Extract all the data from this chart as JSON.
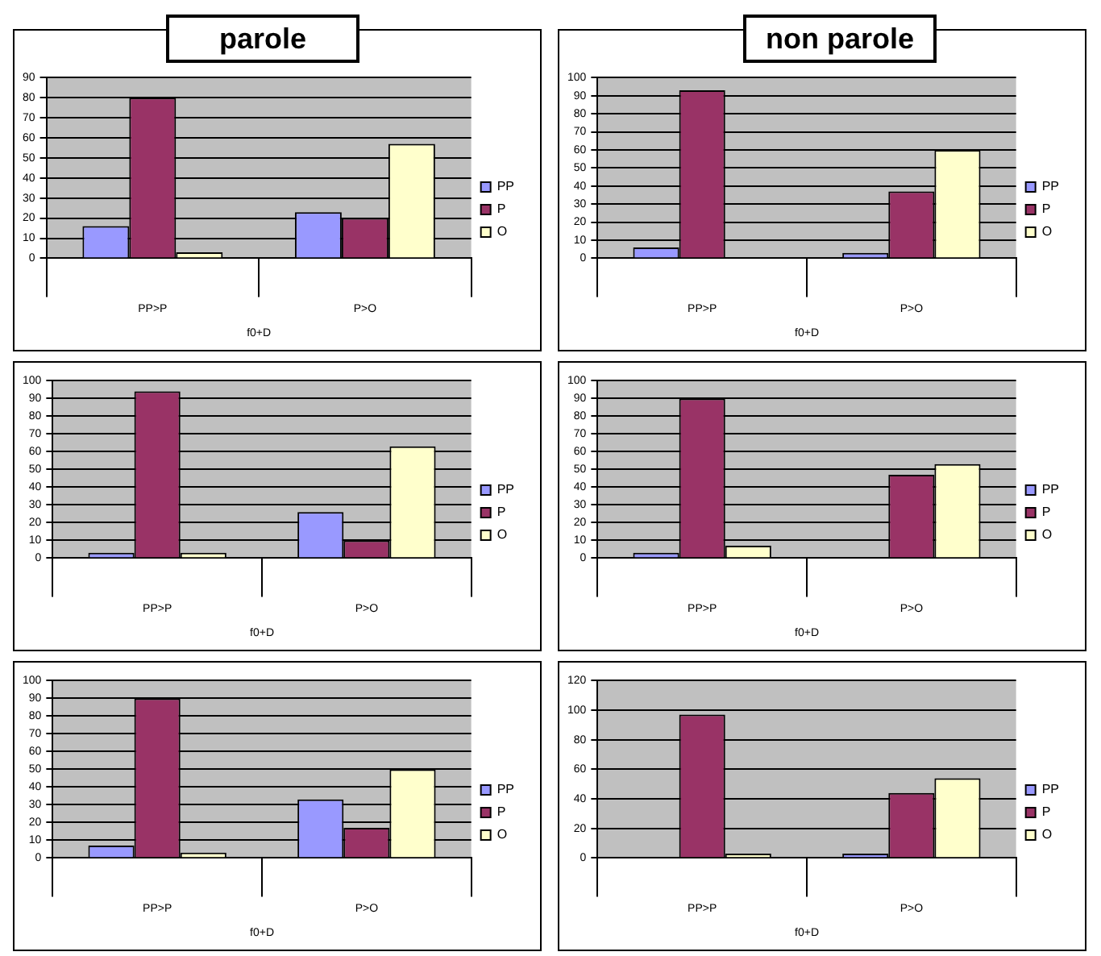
{
  "chart_data": [
    {
      "type": "bar",
      "title": "parole",
      "xlabel": "f0+D",
      "categories": [
        "PP>P",
        "P>O"
      ],
      "series": [
        {
          "name": "PP",
          "color": "#9999ff",
          "values": [
            16,
            23
          ]
        },
        {
          "name": "P",
          "color": "#993366",
          "values": [
            80,
            20
          ]
        },
        {
          "name": "O",
          "color": "#ffffcc",
          "values": [
            3,
            57
          ]
        }
      ],
      "ylim": [
        0,
        90
      ],
      "yticks": [
        0,
        10,
        20,
        30,
        40,
        50,
        60,
        70,
        80,
        90
      ],
      "grid": "y",
      "legend": "right"
    },
    {
      "type": "bar",
      "title": "non parole",
      "xlabel": "f0+D",
      "categories": [
        "PP>P",
        "P>O"
      ],
      "series": [
        {
          "name": "PP",
          "color": "#9999ff",
          "values": [
            6,
            3
          ]
        },
        {
          "name": "P",
          "color": "#993366",
          "values": [
            93,
            37
          ]
        },
        {
          "name": "O",
          "color": "#ffffcc",
          "values": [
            0,
            60
          ]
        }
      ],
      "ylim": [
        0,
        100
      ],
      "yticks": [
        0,
        10,
        20,
        30,
        40,
        50,
        60,
        70,
        80,
        90,
        100
      ],
      "grid": "y",
      "legend": "right"
    },
    {
      "type": "bar",
      "xlabel": "f0+D",
      "categories": [
        "PP>P",
        "P>O"
      ],
      "series": [
        {
          "name": "PP",
          "color": "#9999ff",
          "values": [
            3,
            26
          ]
        },
        {
          "name": "P",
          "color": "#993366",
          "values": [
            94,
            10
          ]
        },
        {
          "name": "O",
          "color": "#ffffcc",
          "values": [
            3,
            63
          ]
        }
      ],
      "ylim": [
        0,
        100
      ],
      "yticks": [
        0,
        10,
        20,
        30,
        40,
        50,
        60,
        70,
        80,
        90,
        100
      ],
      "grid": "y",
      "legend": "right"
    },
    {
      "type": "bar",
      "xlabel": "f0+D",
      "categories": [
        "PP>P",
        "P>O"
      ],
      "series": [
        {
          "name": "PP",
          "color": "#9999ff",
          "values": [
            3,
            0
          ]
        },
        {
          "name": "P",
          "color": "#993366",
          "values": [
            90,
            47
          ]
        },
        {
          "name": "O",
          "color": "#ffffcc",
          "values": [
            7,
            53
          ]
        }
      ],
      "ylim": [
        0,
        100
      ],
      "yticks": [
        0,
        10,
        20,
        30,
        40,
        50,
        60,
        70,
        80,
        90,
        100
      ],
      "grid": "y",
      "legend": "right"
    },
    {
      "type": "bar",
      "xlabel": "f0+D",
      "categories": [
        "PP>P",
        "P>O"
      ],
      "series": [
        {
          "name": "PP",
          "color": "#9999ff",
          "values": [
            7,
            33
          ]
        },
        {
          "name": "P",
          "color": "#993366",
          "values": [
            90,
            17
          ]
        },
        {
          "name": "O",
          "color": "#ffffcc",
          "values": [
            3,
            50
          ]
        }
      ],
      "ylim": [
        0,
        100
      ],
      "yticks": [
        0,
        10,
        20,
        30,
        40,
        50,
        60,
        70,
        80,
        90,
        100
      ],
      "grid": "y",
      "legend": "right"
    },
    {
      "type": "bar",
      "xlabel": "f0+D",
      "categories": [
        "PP>P",
        "P>O"
      ],
      "series": [
        {
          "name": "PP",
          "color": "#9999ff",
          "values": [
            0,
            3
          ]
        },
        {
          "name": "P",
          "color": "#993366",
          "values": [
            97,
            44
          ]
        },
        {
          "name": "O",
          "color": "#ffffcc",
          "values": [
            3,
            54
          ]
        }
      ],
      "ylim": [
        0,
        120
      ],
      "yticks": [
        0,
        20,
        40,
        60,
        80,
        100,
        120
      ],
      "grid": "y",
      "legend": "right"
    }
  ]
}
